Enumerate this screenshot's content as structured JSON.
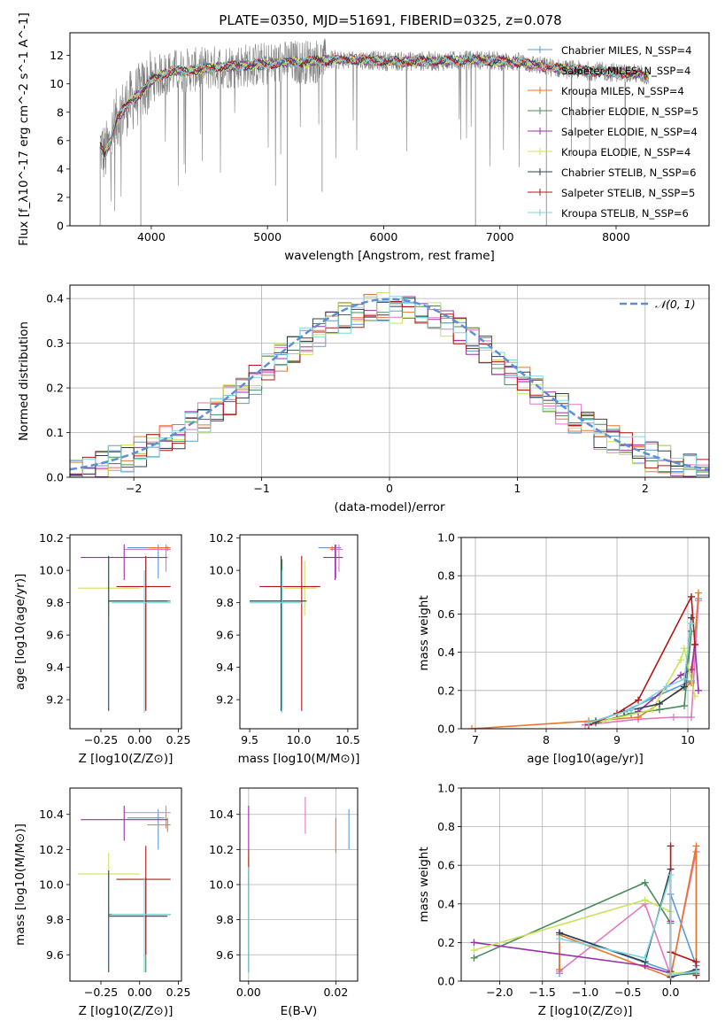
{
  "title": "PLATE=0350, MJD=51691, FIBERID=0325, z=0.078",
  "colors": {
    "chabrier_miles": "#5b9bd5",
    "salpeter_miles": "#e377c2",
    "kroupa_miles": "#e8762b",
    "chabrier_elodie": "#4a8a5a",
    "salpeter_elodie": "#9b30a8",
    "kroupa_elodie": "#c8e45a",
    "chabrier_stelib": "#2f3f4f",
    "salpeter_stelib": "#b01818",
    "kroupa_stelib": "#7fd6e0",
    "data": "#808080",
    "normal": "#5b8fd8"
  },
  "chart_data": [
    {
      "id": "spectrum",
      "type": "line",
      "xlabel": "wavelength [Angstrom, rest frame]",
      "ylabel": "Flux [f_λ10^-17 erg cm^-2 s^-1 A^-1]",
      "xlim": [
        3300,
        8800
      ],
      "ylim": [
        0,
        13.6
      ],
      "xticks": [
        4000,
        5000,
        6000,
        7000,
        8000
      ],
      "yticks": [
        0,
        2,
        4,
        6,
        8,
        10,
        12
      ],
      "legend": [
        "Chabrier MILES, N_SSP=4",
        "Salpeter MILES, N_SSP=4",
        "Kroupa MILES, N_SSP=4",
        "Chabrier ELODIE, N_SSP=5",
        "Salpeter ELODIE, N_SSP=4",
        "Kroupa ELODIE, N_SSP=4",
        "Chabrier STELIB, N_SSP=6",
        "Salpeter STELIB, N_SSP=5",
        "Kroupa STELIB, N_SSP=6"
      ],
      "legend_position": "top-right",
      "continuum": {
        "x": [
          3550,
          3600,
          3650,
          3700,
          3800,
          3900,
          4000,
          4100,
          4200,
          4400,
          4600,
          4800,
          5000,
          5200,
          5400,
          5600,
          5800,
          6000,
          6200,
          6500,
          6800,
          7000,
          7200,
          7400,
          7600,
          7800,
          8000,
          8200,
          8300
        ],
        "y": [
          5.8,
          5.0,
          6.0,
          7.5,
          8.6,
          9.3,
          10.2,
          10.7,
          10.9,
          11.0,
          11.2,
          11.3,
          11.4,
          11.5,
          11.6,
          11.7,
          11.7,
          11.6,
          11.6,
          11.6,
          11.7,
          11.6,
          11.5,
          11.2,
          11.0,
          10.9,
          10.8,
          10.7,
          10.4
        ]
      }
    },
    {
      "id": "residuals",
      "type": "line",
      "xlabel": "(data-model)/error",
      "ylabel": "Normed distribution",
      "xlim": [
        -2.5,
        2.5
      ],
      "ylim": [
        0,
        0.43
      ],
      "xticks": [
        -2,
        -1,
        0,
        1,
        2
      ],
      "yticks": [
        0.0,
        0.1,
        0.2,
        0.3,
        0.4
      ],
      "grid": true,
      "legend": [
        "𝒩(0, 1)"
      ],
      "legend_position": "top-right"
    },
    {
      "id": "age_vs_Z",
      "type": "scatter",
      "xlabel": "Z [log10(Z/Z⊙)]",
      "ylabel": "age [log10(age/yr)]",
      "xlim": [
        -0.45,
        0.27
      ],
      "ylim": [
        9.02,
        10.22
      ],
      "xticks": [
        -0.25,
        0.0,
        0.25
      ],
      "yticks": [
        9.2,
        9.4,
        9.6,
        9.8,
        10.0,
        10.2
      ]
    },
    {
      "id": "age_vs_mass",
      "type": "scatter",
      "xlabel": "mass [log10(M/M⊙)]",
      "xlim": [
        9.4,
        10.6
      ],
      "ylim": [
        9.02,
        10.22
      ],
      "xticks": [
        9.5,
        10.0,
        10.5
      ],
      "yticks": [
        9.2,
        9.4,
        9.6,
        9.8,
        10.0,
        10.2
      ]
    },
    {
      "id": "weight_vs_age",
      "type": "line",
      "xlabel": "age [log10(age/yr)]",
      "ylabel": "mass weight",
      "xlim": [
        6.8,
        10.3
      ],
      "ylim": [
        0,
        1.0
      ],
      "xticks": [
        7,
        8,
        9,
        10
      ],
      "yticks": [
        0.0,
        0.2,
        0.4,
        0.6,
        0.8,
        1.0
      ],
      "grid": true
    },
    {
      "id": "mass_vs_Z",
      "type": "scatter",
      "xlabel": "Z [log10(Z/Z⊙)]",
      "ylabel": "mass [log10(M/M⊙)]",
      "xlim": [
        -0.45,
        0.27
      ],
      "ylim": [
        9.45,
        10.55
      ],
      "xticks": [
        -0.25,
        0.0,
        0.25
      ],
      "yticks": [
        9.6,
        9.8,
        10.0,
        10.2,
        10.4
      ]
    },
    {
      "id": "mass_vs_ebv",
      "type": "scatter",
      "xlabel": "E(B-V)",
      "xlim": [
        -0.002,
        0.025
      ],
      "ylim": [
        9.45,
        10.55
      ],
      "xticks": [
        0.0,
        0.02
      ],
      "yticks": [
        9.6,
        9.8,
        10.0,
        10.2,
        10.4
      ],
      "grid": true
    },
    {
      "id": "weight_vs_Z",
      "type": "line",
      "xlabel": "Z [log10(Z/Z⊙)]",
      "ylabel": "mass weight",
      "xlim": [
        -2.45,
        0.45
      ],
      "ylim": [
        0,
        1.0
      ],
      "xticks": [
        -2.0,
        -1.5,
        -1.0,
        -0.5,
        0.0
      ],
      "yticks": [
        0.0,
        0.2,
        0.4,
        0.6,
        0.8,
        1.0
      ],
      "grid": true
    }
  ],
  "models": [
    {
      "key": "chabrier_miles",
      "Z": 0.12,
      "Zlo": -0.08,
      "Zhi": 0.16,
      "age": 10.14,
      "agelo": 9.95,
      "agehi": 10.16,
      "mass": 10.38,
      "masslo": 10.2,
      "masshi": 10.43,
      "ebv": 0.023,
      "ebvlo": 10.2,
      "ebvhi": 10.43,
      "ages": [
        8.6,
        9.1,
        9.5,
        10.05,
        10.15
      ],
      "wa": [
        0.03,
        0.09,
        0.16,
        0.25,
        0.68
      ],
      "Zs": [
        -1.3,
        -1.3,
        0.0,
        0.0,
        0.3
      ],
      "wz": [
        0.04,
        0.25,
        0.05,
        0.45,
        0.08
      ]
    },
    {
      "key": "salpeter_miles",
      "Z": 0.17,
      "Zlo": -0.1,
      "Zhi": 0.2,
      "age": 10.13,
      "agelo": 9.99,
      "agehi": 10.16,
      "mass": 10.41,
      "masslo": 10.32,
      "masshi": 10.45,
      "ebv": 0.013,
      "ebvlo": 10.29,
      "ebvhi": 10.5,
      "ages": [
        8.55,
        9.3,
        9.8,
        10.05,
        10.15
      ],
      "wa": [
        0.02,
        0.05,
        0.06,
        0.06,
        0.67
      ],
      "Zs": [
        -1.3,
        -0.3,
        0.0,
        0.3,
        0.3
      ],
      "wz": [
        0.05,
        0.4,
        0.03,
        0.67,
        0.03
      ]
    },
    {
      "key": "kroupa_miles",
      "Z": 0.18,
      "Zlo": 0.05,
      "Zhi": 0.2,
      "age": 10.14,
      "agelo": 10.12,
      "agehi": 10.15,
      "mass": 10.34,
      "masslo": 10.3,
      "masshi": 10.38,
      "ebv": 0.02,
      "ebvlo": 10.18,
      "ebvhi": 10.38,
      "ages": [
        6.95,
        8.6,
        9.3,
        10.05,
        10.15
      ],
      "wa": [
        0.0,
        0.04,
        0.06,
        0.24,
        0.71
      ],
      "Zs": [
        -1.3,
        -1.3,
        0.0,
        0.3,
        0.3
      ],
      "wz": [
        0.06,
        0.24,
        0.02,
        0.7,
        0.04
      ]
    },
    {
      "key": "chabrier_elodie",
      "Z": 0.04,
      "Zlo": -0.2,
      "Zhi": 0.2,
      "age": 9.81,
      "agelo": 9.14,
      "agehi": 10.07,
      "mass": 9.83,
      "masslo": 9.5,
      "masshi": 10.04,
      "ebv": 0.0,
      "ebvlo": 9.5,
      "ebvhi": 10.1,
      "ages": [
        8.7,
        9.2,
        9.6,
        9.95,
        10.05
      ],
      "wa": [
        0.03,
        0.08,
        0.1,
        0.12,
        0.51
      ],
      "Zs": [
        -2.3,
        -0.3,
        0.0,
        0.0,
        0.3
      ],
      "wz": [
        0.12,
        0.51,
        0.3,
        0.03,
        0.04
      ]
    },
    {
      "key": "salpeter_elodie",
      "Z": -0.1,
      "Zlo": -0.38,
      "Zhi": 0.18,
      "age": 10.08,
      "agelo": 9.94,
      "agehi": 10.16,
      "mass": 10.37,
      "masslo": 10.25,
      "masshi": 10.45,
      "ebv": 0.0,
      "ebvlo": 10.2,
      "ebvhi": 10.45,
      "ages": [
        9.3,
        9.9,
        10.05,
        10.1,
        10.15
      ],
      "wa": [
        0.09,
        0.28,
        0.31,
        0.44,
        0.2
      ],
      "Zs": [
        -2.3,
        -0.3,
        0.0,
        0.0,
        0.0
      ],
      "wz": [
        0.2,
        0.08,
        0.04,
        0.31,
        0.03
      ]
    },
    {
      "key": "kroupa_elodie",
      "Z": -0.2,
      "Zlo": -0.4,
      "Zhi": 0.0,
      "age": 9.89,
      "agelo": 9.72,
      "agehi": 10.06,
      "mass": 10.06,
      "masslo": 9.85,
      "masshi": 10.18,
      "ebv": 0.0,
      "ebvlo": 9.9,
      "ebvhi": 10.15,
      "ages": [
        8.8,
        9.5,
        9.9,
        9.95,
        10.1
      ],
      "wa": [
        0.04,
        0.1,
        0.36,
        0.42,
        0.17
      ],
      "Zs": [
        -2.3,
        -0.3,
        0.0,
        0.0,
        0.3
      ],
      "wz": [
        0.16,
        0.42,
        0.36,
        0.04,
        0.05
      ]
    },
    {
      "key": "chabrier_stelib",
      "Z": -0.2,
      "Zlo": -0.2,
      "Zhi": 0.18,
      "age": 9.81,
      "agelo": 9.13,
      "agehi": 10.09,
      "mass": 9.82,
      "masslo": 9.5,
      "masshi": 10.08,
      "ebv": 0.0,
      "ebvlo": 9.5,
      "ebvhi": 10.08,
      "ages": [
        8.7,
        9.1,
        9.6,
        9.95,
        10.05
      ],
      "wa": [
        0.04,
        0.09,
        0.13,
        0.22,
        0.58
      ],
      "Zs": [
        -1.3,
        -0.3,
        0.0,
        0.0,
        0.3
      ],
      "wz": [
        0.25,
        0.1,
        0.58,
        0.02,
        0.06
      ]
    },
    {
      "key": "salpeter_stelib",
      "Z": 0.04,
      "Zlo": -0.15,
      "Zhi": 0.2,
      "age": 9.9,
      "agelo": 9.13,
      "agehi": 10.09,
      "mass": 10.03,
      "masslo": 9.6,
      "masshi": 10.22,
      "ebv": 0.0,
      "ebvlo": 10.0,
      "ebvhi": 10.2,
      "ages": [
        8.6,
        9.0,
        9.3,
        10.05,
        10.1
      ],
      "wa": [
        0.02,
        0.08,
        0.15,
        0.69,
        0.44
      ],
      "Zs": [
        0.0,
        0.0,
        0.0,
        0.3,
        0.3
      ],
      "wz": [
        0.05,
        0.7,
        0.15,
        0.1,
        0.03
      ]
    },
    {
      "key": "kroupa_stelib",
      "Z": 0.03,
      "Zlo": -0.18,
      "Zhi": 0.2,
      "age": 9.8,
      "agelo": 9.12,
      "agehi": 10.0,
      "mass": 9.83,
      "masslo": 9.5,
      "masshi": 10.04,
      "ebv": 0.0,
      "ebvlo": 9.5,
      "ebvhi": 10.1,
      "ages": [
        8.6,
        9.2,
        9.7,
        9.95,
        10.05
      ],
      "wa": [
        0.03,
        0.1,
        0.22,
        0.26,
        0.55
      ],
      "Zs": [
        -1.3,
        -0.3,
        0.0,
        0.0,
        0.3
      ],
      "wz": [
        0.22,
        0.12,
        0.55,
        0.03,
        0.05
      ]
    }
  ]
}
